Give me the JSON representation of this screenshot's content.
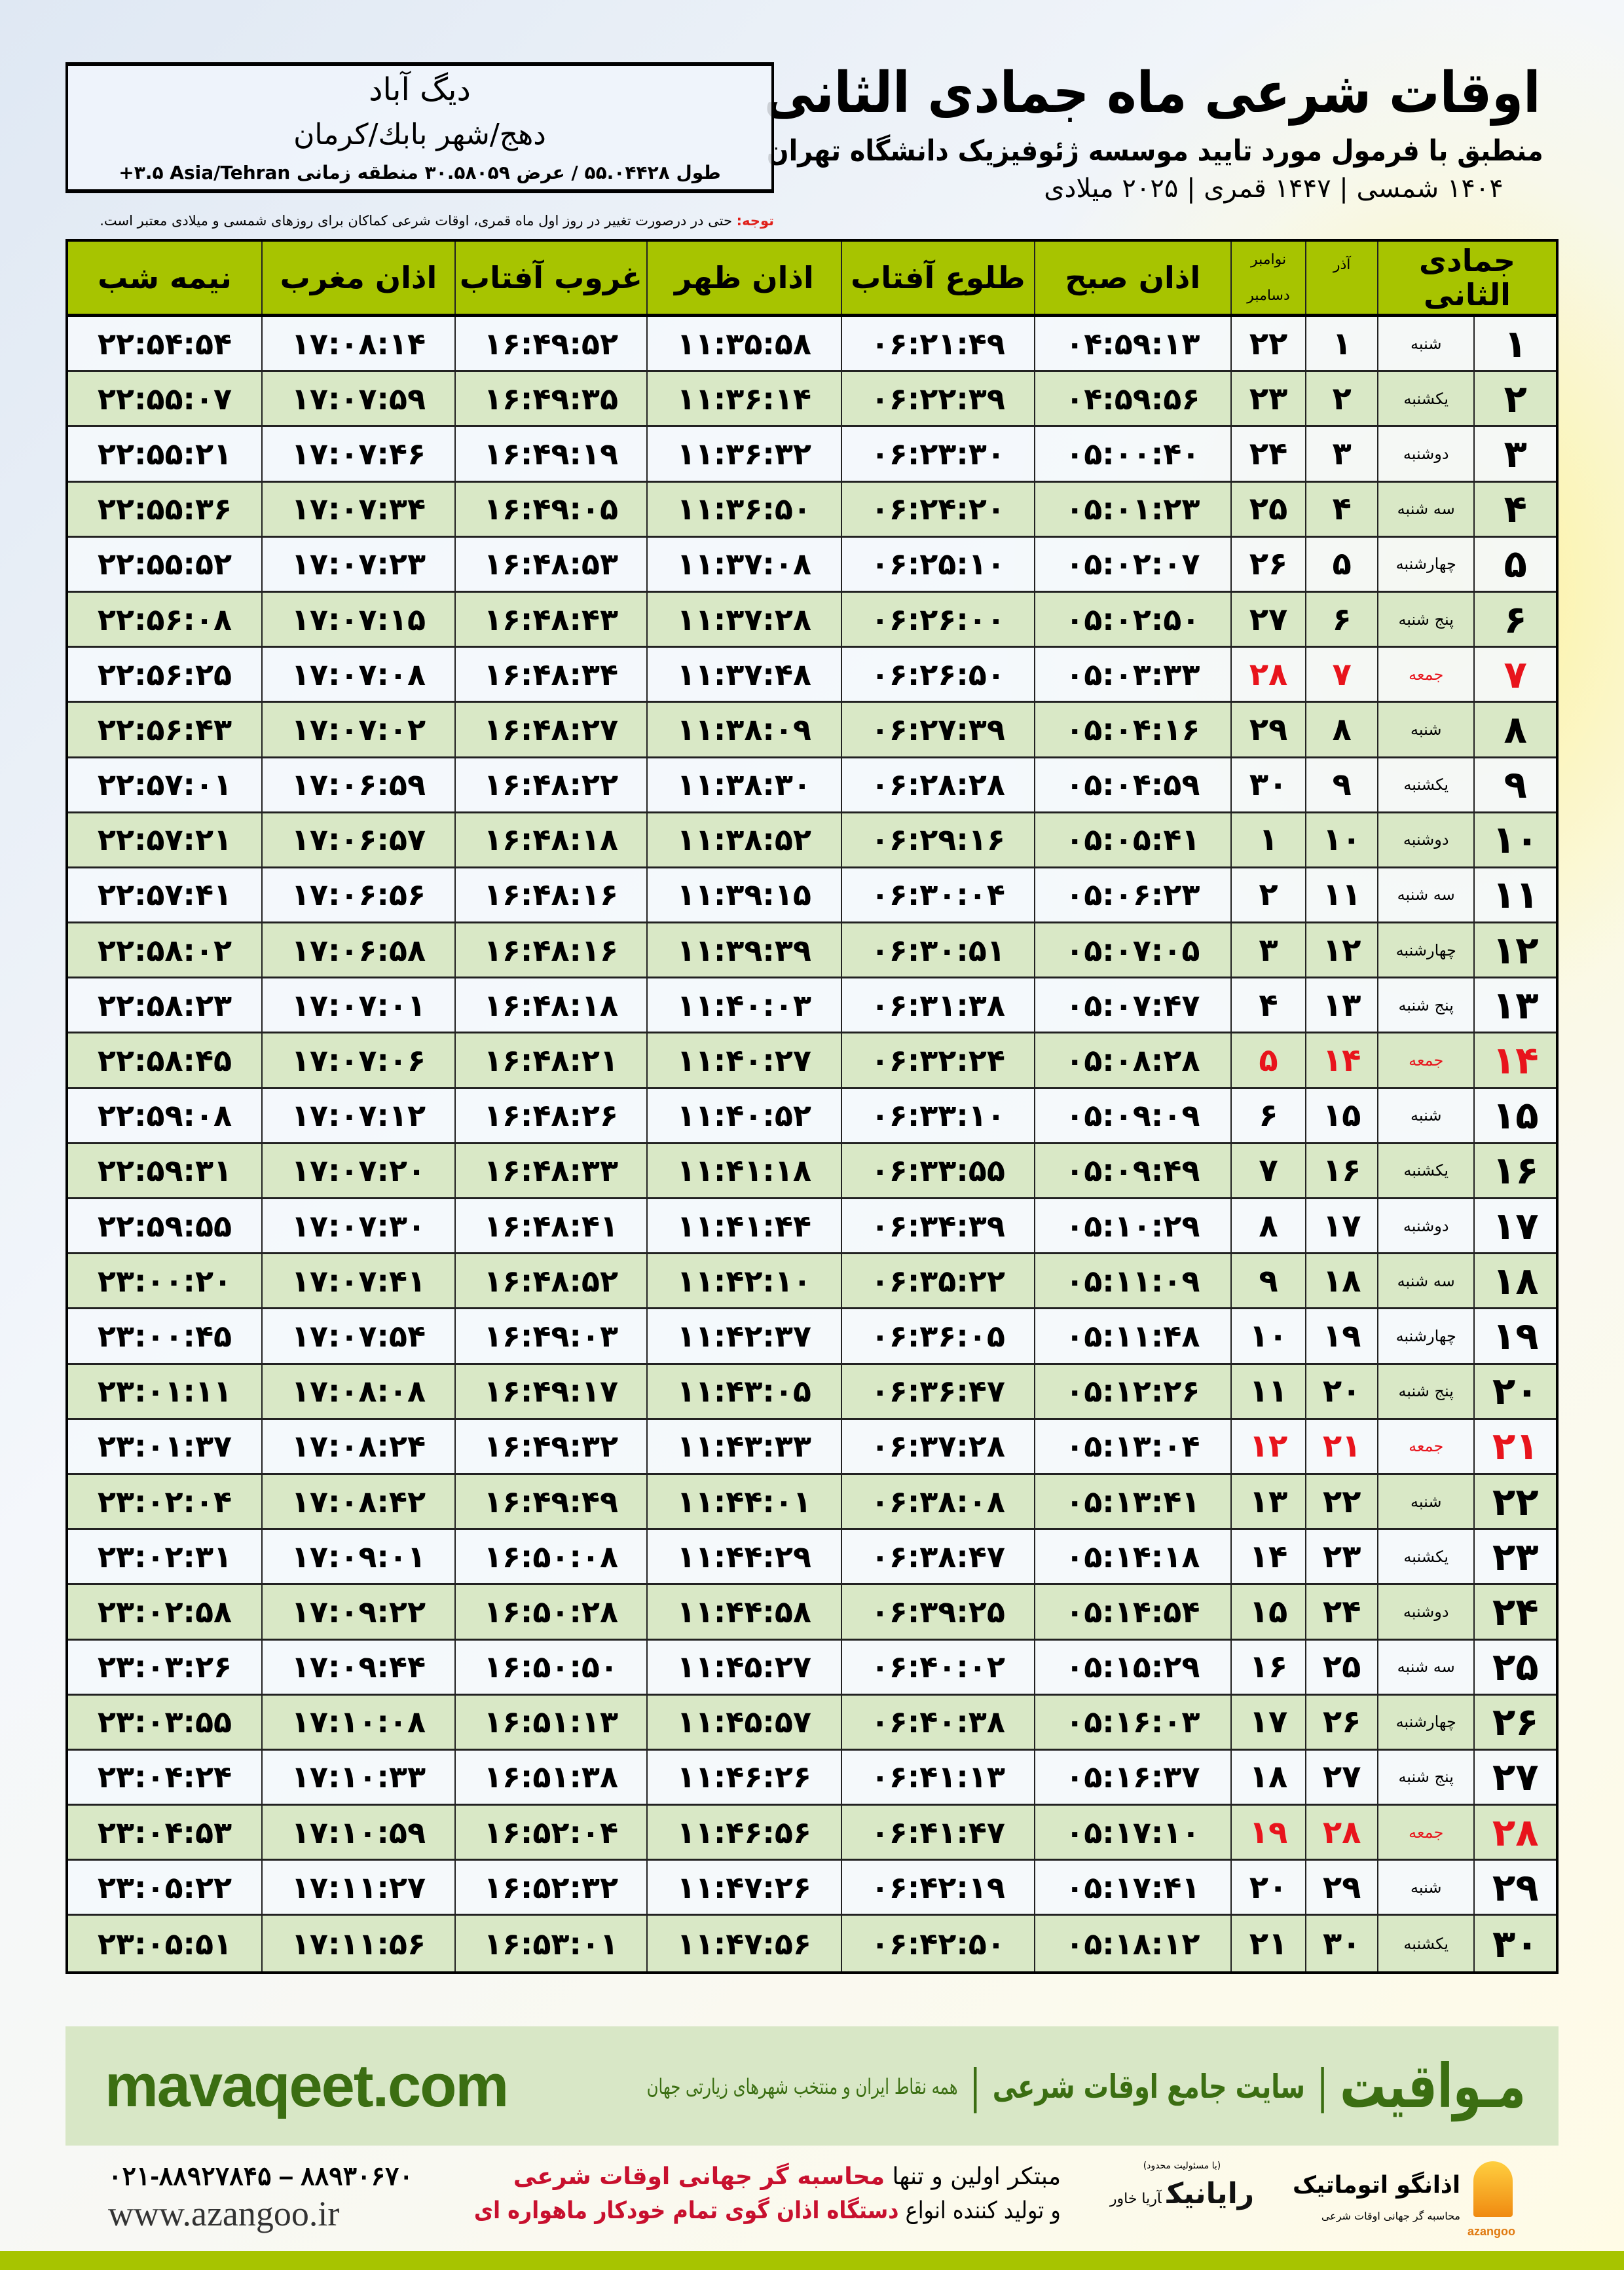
{
  "header": {
    "title": "اوقات شرعی ماه جمادی الثانی",
    "subtitle": "منطبق با فرمول مورد تایید موسسه ژئوفیزیک دانشگاه تهران",
    "dates": "۱۴۰۴ شمسی | ۱۴۴۷ قمری | ۲۰۲۵ میلادی"
  },
  "location": {
    "city": "دیگ آباد",
    "region": "دهج/شهر بابك/كرمان",
    "coords": "طول ۵۵.۰۴۴۲۸ / عرض ۳۰.۵۸۰۵۹ منطقه زمانی ‎+۳.۵ Asia/Tehran"
  },
  "note": {
    "label": "توجه:",
    "text": " حتی در درصورت تغییر در روز اول ماه قمری، اوقات شرعی کماکان برای روزهای شمسی و میلادی معتبر است."
  },
  "table": {
    "headers": {
      "hijri": "جمادی الثانی",
      "azar": "آذر",
      "greg_top": "نوامبر",
      "greg_bottom": "دسامبر",
      "fajr": "اذان صبح",
      "sunrise": "طلوع آفتاب",
      "dhuhr": "اذان ظهر",
      "sunset": "غروب آفتاب",
      "maghrib": "اذان مغرب",
      "midnight": "نیمه شب"
    },
    "holiday_color": "#e8141c",
    "header_color": "#a7c400",
    "rows": [
      {
        "hijri": "۱",
        "weekday": "شنبه",
        "azar": "۱",
        "greg": "۲۲",
        "fajr": "۰۴:۵۹:۱۳",
        "sunrise": "۰۶:۲۱:۴۹",
        "dhuhr": "۱۱:۳۵:۵۸",
        "sunset": "۱۶:۴۹:۵۲",
        "maghrib": "۱۷:۰۸:۱۴",
        "midnight": "۲۲:۵۴:۵۴",
        "holiday": false
      },
      {
        "hijri": "۲",
        "weekday": "یکشنبه",
        "azar": "۲",
        "greg": "۲۳",
        "fajr": "۰۴:۵۹:۵۶",
        "sunrise": "۰۶:۲۲:۳۹",
        "dhuhr": "۱۱:۳۶:۱۴",
        "sunset": "۱۶:۴۹:۳۵",
        "maghrib": "۱۷:۰۷:۵۹",
        "midnight": "۲۲:۵۵:۰۷",
        "holiday": false
      },
      {
        "hijri": "۳",
        "weekday": "دوشنبه",
        "azar": "۳",
        "greg": "۲۴",
        "fajr": "۰۵:۰۰:۴۰",
        "sunrise": "۰۶:۲۳:۳۰",
        "dhuhr": "۱۱:۳۶:۳۲",
        "sunset": "۱۶:۴۹:۱۹",
        "maghrib": "۱۷:۰۷:۴۶",
        "midnight": "۲۲:۵۵:۲۱",
        "holiday": false
      },
      {
        "hijri": "۴",
        "weekday": "سه شنبه",
        "azar": "۴",
        "greg": "۲۵",
        "fajr": "۰۵:۰۱:۲۳",
        "sunrise": "۰۶:۲۴:۲۰",
        "dhuhr": "۱۱:۳۶:۵۰",
        "sunset": "۱۶:۴۹:۰۵",
        "maghrib": "۱۷:۰۷:۳۴",
        "midnight": "۲۲:۵۵:۳۶",
        "holiday": false
      },
      {
        "hijri": "۵",
        "weekday": "چهارشنبه",
        "azar": "۵",
        "greg": "۲۶",
        "fajr": "۰۵:۰۲:۰۷",
        "sunrise": "۰۶:۲۵:۱۰",
        "dhuhr": "۱۱:۳۷:۰۸",
        "sunset": "۱۶:۴۸:۵۳",
        "maghrib": "۱۷:۰۷:۲۳",
        "midnight": "۲۲:۵۵:۵۲",
        "holiday": false
      },
      {
        "hijri": "۶",
        "weekday": "پنج شنبه",
        "azar": "۶",
        "greg": "۲۷",
        "fajr": "۰۵:۰۲:۵۰",
        "sunrise": "۰۶:۲۶:۰۰",
        "dhuhr": "۱۱:۳۷:۲۸",
        "sunset": "۱۶:۴۸:۴۳",
        "maghrib": "۱۷:۰۷:۱۵",
        "midnight": "۲۲:۵۶:۰۸",
        "holiday": false
      },
      {
        "hijri": "۷",
        "weekday": "جمعه",
        "azar": "۷",
        "greg": "۲۸",
        "fajr": "۰۵:۰۳:۳۳",
        "sunrise": "۰۶:۲۶:۵۰",
        "dhuhr": "۱۱:۳۷:۴۸",
        "sunset": "۱۶:۴۸:۳۴",
        "maghrib": "۱۷:۰۷:۰۸",
        "midnight": "۲۲:۵۶:۲۵",
        "holiday": true
      },
      {
        "hijri": "۸",
        "weekday": "شنبه",
        "azar": "۸",
        "greg": "۲۹",
        "fajr": "۰۵:۰۴:۱۶",
        "sunrise": "۰۶:۲۷:۳۹",
        "dhuhr": "۱۱:۳۸:۰۹",
        "sunset": "۱۶:۴۸:۲۷",
        "maghrib": "۱۷:۰۷:۰۲",
        "midnight": "۲۲:۵۶:۴۳",
        "holiday": false
      },
      {
        "hijri": "۹",
        "weekday": "یکشنبه",
        "azar": "۹",
        "greg": "۳۰",
        "fajr": "۰۵:۰۴:۵۹",
        "sunrise": "۰۶:۲۸:۲۸",
        "dhuhr": "۱۱:۳۸:۳۰",
        "sunset": "۱۶:۴۸:۲۲",
        "maghrib": "۱۷:۰۶:۵۹",
        "midnight": "۲۲:۵۷:۰۱",
        "holiday": false
      },
      {
        "hijri": "۱۰",
        "weekday": "دوشنبه",
        "azar": "۱۰",
        "greg": "۱",
        "fajr": "۰۵:۰۵:۴۱",
        "sunrise": "۰۶:۲۹:۱۶",
        "dhuhr": "۱۱:۳۸:۵۲",
        "sunset": "۱۶:۴۸:۱۸",
        "maghrib": "۱۷:۰۶:۵۷",
        "midnight": "۲۲:۵۷:۲۱",
        "holiday": false
      },
      {
        "hijri": "۱۱",
        "weekday": "سه شنبه",
        "azar": "۱۱",
        "greg": "۲",
        "fajr": "۰۵:۰۶:۲۳",
        "sunrise": "۰۶:۳۰:۰۴",
        "dhuhr": "۱۱:۳۹:۱۵",
        "sunset": "۱۶:۴۸:۱۶",
        "maghrib": "۱۷:۰۶:۵۶",
        "midnight": "۲۲:۵۷:۴۱",
        "holiday": false
      },
      {
        "hijri": "۱۲",
        "weekday": "چهارشنبه",
        "azar": "۱۲",
        "greg": "۳",
        "fajr": "۰۵:۰۷:۰۵",
        "sunrise": "۰۶:۳۰:۵۱",
        "dhuhr": "۱۱:۳۹:۳۹",
        "sunset": "۱۶:۴۸:۱۶",
        "maghrib": "۱۷:۰۶:۵۸",
        "midnight": "۲۲:۵۸:۰۲",
        "holiday": false
      },
      {
        "hijri": "۱۳",
        "weekday": "پنج شنبه",
        "azar": "۱۳",
        "greg": "۴",
        "fajr": "۰۵:۰۷:۴۷",
        "sunrise": "۰۶:۳۱:۳۸",
        "dhuhr": "۱۱:۴۰:۰۳",
        "sunset": "۱۶:۴۸:۱۸",
        "maghrib": "۱۷:۰۷:۰۱",
        "midnight": "۲۲:۵۸:۲۳",
        "holiday": false
      },
      {
        "hijri": "۱۴",
        "weekday": "جمعه",
        "azar": "۱۴",
        "greg": "۵",
        "fajr": "۰۵:۰۸:۲۸",
        "sunrise": "۰۶:۳۲:۲۴",
        "dhuhr": "۱۱:۴۰:۲۷",
        "sunset": "۱۶:۴۸:۲۱",
        "maghrib": "۱۷:۰۷:۰۶",
        "midnight": "۲۲:۵۸:۴۵",
        "holiday": true
      },
      {
        "hijri": "۱۵",
        "weekday": "شنبه",
        "azar": "۱۵",
        "greg": "۶",
        "fajr": "۰۵:۰۹:۰۹",
        "sunrise": "۰۶:۳۳:۱۰",
        "dhuhr": "۱۱:۴۰:۵۲",
        "sunset": "۱۶:۴۸:۲۶",
        "maghrib": "۱۷:۰۷:۱۲",
        "midnight": "۲۲:۵۹:۰۸",
        "holiday": false
      },
      {
        "hijri": "۱۶",
        "weekday": "یکشنبه",
        "azar": "۱۶",
        "greg": "۷",
        "fajr": "۰۵:۰۹:۴۹",
        "sunrise": "۰۶:۳۳:۵۵",
        "dhuhr": "۱۱:۴۱:۱۸",
        "sunset": "۱۶:۴۸:۳۳",
        "maghrib": "۱۷:۰۷:۲۰",
        "midnight": "۲۲:۵۹:۳۱",
        "holiday": false
      },
      {
        "hijri": "۱۷",
        "weekday": "دوشنبه",
        "azar": "۱۷",
        "greg": "۸",
        "fajr": "۰۵:۱۰:۲۹",
        "sunrise": "۰۶:۳۴:۳۹",
        "dhuhr": "۱۱:۴۱:۴۴",
        "sunset": "۱۶:۴۸:۴۱",
        "maghrib": "۱۷:۰۷:۳۰",
        "midnight": "۲۲:۵۹:۵۵",
        "holiday": false
      },
      {
        "hijri": "۱۸",
        "weekday": "سه شنبه",
        "azar": "۱۸",
        "greg": "۹",
        "fajr": "۰۵:۱۱:۰۹",
        "sunrise": "۰۶:۳۵:۲۲",
        "dhuhr": "۱۱:۴۲:۱۰",
        "sunset": "۱۶:۴۸:۵۲",
        "maghrib": "۱۷:۰۷:۴۱",
        "midnight": "۲۳:۰۰:۲۰",
        "holiday": false
      },
      {
        "hijri": "۱۹",
        "weekday": "چهارشنبه",
        "azar": "۱۹",
        "greg": "۱۰",
        "fajr": "۰۵:۱۱:۴۸",
        "sunrise": "۰۶:۳۶:۰۵",
        "dhuhr": "۱۱:۴۲:۳۷",
        "sunset": "۱۶:۴۹:۰۳",
        "maghrib": "۱۷:۰۷:۵۴",
        "midnight": "۲۳:۰۰:۴۵",
        "holiday": false
      },
      {
        "hijri": "۲۰",
        "weekday": "پنج شنبه",
        "azar": "۲۰",
        "greg": "۱۱",
        "fajr": "۰۵:۱۲:۲۶",
        "sunrise": "۰۶:۳۶:۴۷",
        "dhuhr": "۱۱:۴۳:۰۵",
        "sunset": "۱۶:۴۹:۱۷",
        "maghrib": "۱۷:۰۸:۰۸",
        "midnight": "۲۳:۰۱:۱۱",
        "holiday": false
      },
      {
        "hijri": "۲۱",
        "weekday": "جمعه",
        "azar": "۲۱",
        "greg": "۱۲",
        "fajr": "۰۵:۱۳:۰۴",
        "sunrise": "۰۶:۳۷:۲۸",
        "dhuhr": "۱۱:۴۳:۳۳",
        "sunset": "۱۶:۴۹:۳۲",
        "maghrib": "۱۷:۰۸:۲۴",
        "midnight": "۲۳:۰۱:۳۷",
        "holiday": true
      },
      {
        "hijri": "۲۲",
        "weekday": "شنبه",
        "azar": "۲۲",
        "greg": "۱۳",
        "fajr": "۰۵:۱۳:۴۱",
        "sunrise": "۰۶:۳۸:۰۸",
        "dhuhr": "۱۱:۴۴:۰۱",
        "sunset": "۱۶:۴۹:۴۹",
        "maghrib": "۱۷:۰۸:۴۲",
        "midnight": "۲۳:۰۲:۰۴",
        "holiday": false
      },
      {
        "hijri": "۲۳",
        "weekday": "یکشنبه",
        "azar": "۲۳",
        "greg": "۱۴",
        "fajr": "۰۵:۱۴:۱۸",
        "sunrise": "۰۶:۳۸:۴۷",
        "dhuhr": "۱۱:۴۴:۲۹",
        "sunset": "۱۶:۵۰:۰۸",
        "maghrib": "۱۷:۰۹:۰۱",
        "midnight": "۲۳:۰۲:۳۱",
        "holiday": false
      },
      {
        "hijri": "۲۴",
        "weekday": "دوشنبه",
        "azar": "۲۴",
        "greg": "۱۵",
        "fajr": "۰۵:۱۴:۵۴",
        "sunrise": "۰۶:۳۹:۲۵",
        "dhuhr": "۱۱:۴۴:۵۸",
        "sunset": "۱۶:۵۰:۲۸",
        "maghrib": "۱۷:۰۹:۲۲",
        "midnight": "۲۳:۰۲:۵۸",
        "holiday": false
      },
      {
        "hijri": "۲۵",
        "weekday": "سه شنبه",
        "azar": "۲۵",
        "greg": "۱۶",
        "fajr": "۰۵:۱۵:۲۹",
        "sunrise": "۰۶:۴۰:۰۲",
        "dhuhr": "۱۱:۴۵:۲۷",
        "sunset": "۱۶:۵۰:۵۰",
        "maghrib": "۱۷:۰۹:۴۴",
        "midnight": "۲۳:۰۳:۲۶",
        "holiday": false
      },
      {
        "hijri": "۲۶",
        "weekday": "چهارشنبه",
        "azar": "۲۶",
        "greg": "۱۷",
        "fajr": "۰۵:۱۶:۰۳",
        "sunrise": "۰۶:۴۰:۳۸",
        "dhuhr": "۱۱:۴۵:۵۷",
        "sunset": "۱۶:۵۱:۱۳",
        "maghrib": "۱۷:۱۰:۰۸",
        "midnight": "۲۳:۰۳:۵۵",
        "holiday": false
      },
      {
        "hijri": "۲۷",
        "weekday": "پنج شنبه",
        "azar": "۲۷",
        "greg": "۱۸",
        "fajr": "۰۵:۱۶:۳۷",
        "sunrise": "۰۶:۴۱:۱۳",
        "dhuhr": "۱۱:۴۶:۲۶",
        "sunset": "۱۶:۵۱:۳۸",
        "maghrib": "۱۷:۱۰:۳۳",
        "midnight": "۲۳:۰۴:۲۴",
        "holiday": false
      },
      {
        "hijri": "۲۸",
        "weekday": "جمعه",
        "azar": "۲۸",
        "greg": "۱۹",
        "fajr": "۰۵:۱۷:۱۰",
        "sunrise": "۰۶:۴۱:۴۷",
        "dhuhr": "۱۱:۴۶:۵۶",
        "sunset": "۱۶:۵۲:۰۴",
        "maghrib": "۱۷:۱۰:۵۹",
        "midnight": "۲۳:۰۴:۵۳",
        "holiday": true
      },
      {
        "hijri": "۲۹",
        "weekday": "شنبه",
        "azar": "۲۹",
        "greg": "۲۰",
        "fajr": "۰۵:۱۷:۴۱",
        "sunrise": "۰۶:۴۲:۱۹",
        "dhuhr": "۱۱:۴۷:۲۶",
        "sunset": "۱۶:۵۲:۳۲",
        "maghrib": "۱۷:۱۱:۲۷",
        "midnight": "۲۳:۰۵:۲۲",
        "holiday": false
      },
      {
        "hijri": "۳۰",
        "weekday": "یکشنبه",
        "azar": "۳۰",
        "greg": "۲۱",
        "fajr": "۰۵:۱۸:۱۲",
        "sunrise": "۰۶:۴۲:۵۰",
        "dhuhr": "۱۱:۴۷:۵۶",
        "sunset": "۱۶:۵۳:۰۱",
        "maghrib": "۱۷:۱۱:۵۶",
        "midnight": "۲۳:۰۵:۵۱",
        "holiday": false
      }
    ]
  },
  "banner": {
    "brand": "مـواقیت",
    "separator": "|",
    "slogan": "سایت جامع اوقات شرعی",
    "sub": "همه نقاط ایران و منتخب شهرهای زیارتی جهان",
    "url": "mavaqeet.com",
    "color": "#3b6e12"
  },
  "footer": {
    "phone": "۰۲۱-۸۸۹۲۷۸۴۵ – ۸۸۹۳۰۶۷۰",
    "web": "www.azangoo.ir",
    "promo1_a": "مبتکر اولین و تنها ",
    "promo1_b": "محاسبه گر جهانی اوقات شرعی",
    "promo2_a": "و تولید کننده انواع ",
    "promo2_b": "دستگاه اذان گوی تمام خودکار ماهواره ای",
    "rayanik_small": "(با مسئولیت محدود)",
    "rayanik_name": "رایانیک",
    "rayanik_sub": "آریا خاور",
    "azango_name": "اذانگو اتوماتیک",
    "azango_tag": "محاسبه گر جهانی اوقات شرعی",
    "azango_en": "azangoo"
  }
}
